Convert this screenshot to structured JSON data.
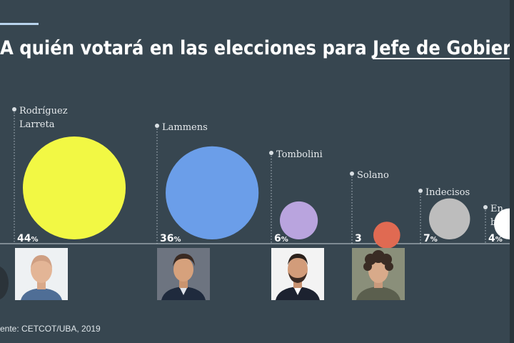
{
  "title": {
    "prefix": "A quién votará en las elecciones para ",
    "highlight": "Jefe de Gobierno"
  },
  "source": "ente: CETCOT/UBA, 2019",
  "chart_data": {
    "type": "bubble",
    "categories": [
      "Rodríguez Larreta",
      "Lammens",
      "Tombolini",
      "Solano",
      "Indecisos",
      "En blanco"
    ],
    "label_lines": [
      [
        "Rodríguez",
        "Larreta"
      ],
      [
        "Lammens"
      ],
      [
        "Tombolini"
      ],
      [
        "Solano"
      ],
      [
        "Indecisos"
      ],
      [
        "En",
        "blanco"
      ]
    ],
    "values": [
      44,
      36,
      6,
      3,
      7,
      4
    ],
    "value_labels": [
      {
        "num": "44",
        "unit": "%"
      },
      {
        "num": "36",
        "unit": "%"
      },
      {
        "num": "6",
        "unit": "%"
      },
      {
        "num": "3",
        "unit": ""
      },
      {
        "num": "7",
        "unit": "%"
      },
      {
        "num": "4",
        "unit": "%"
      }
    ],
    "colors": [
      "#f2f844",
      "#6b9ee9",
      "#b9a4de",
      "#e06a52",
      "#bdbdbd",
      "#ffffff"
    ],
    "photos": [
      "bald-man-portrait",
      "man-portrait",
      "bearded-man-portrait",
      "curly-hair-man-portrait",
      null,
      null
    ]
  }
}
